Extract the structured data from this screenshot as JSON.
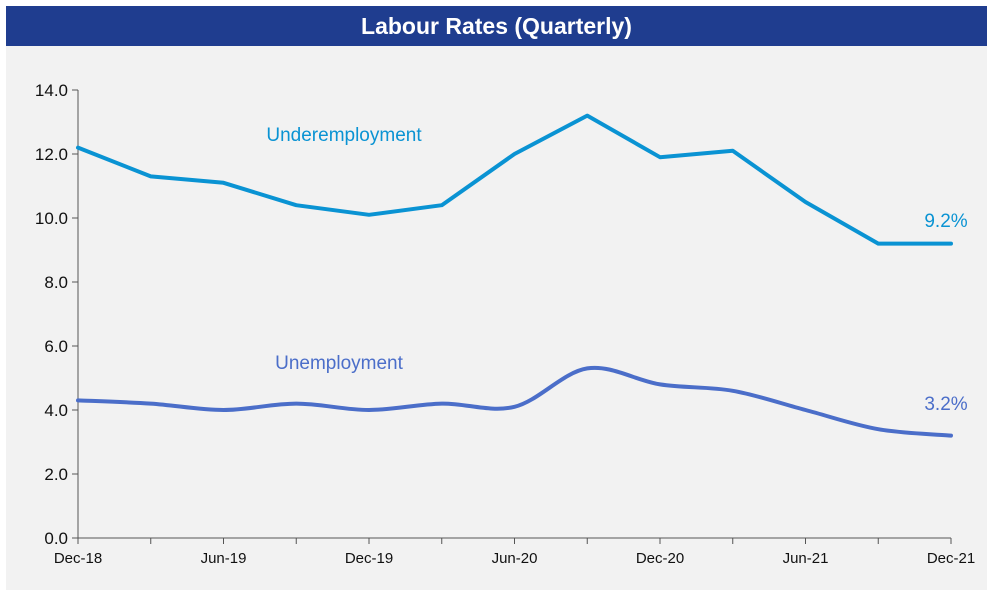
{
  "header": {
    "title": "Labour Rates (Quarterly)"
  },
  "colors": {
    "header_bg": "#1f3d8f",
    "panel_bg": "#f2f2f2",
    "underemployment": "#0a93d3",
    "unemployment": "#4b6ec9"
  },
  "chart_data": {
    "type": "line",
    "title": "Labour Rates (Quarterly)",
    "xlabel": "",
    "ylabel": "",
    "grid": false,
    "x": [
      "Dec-18",
      "Mar-19",
      "Jun-19",
      "Sep-19",
      "Dec-19",
      "Mar-20",
      "Jun-20",
      "Sep-20",
      "Dec-20",
      "Mar-21",
      "Jun-21",
      "Sep-21",
      "Dec-21"
    ],
    "x_tick_labels": [
      "Dec-18",
      "Jun-19",
      "Dec-19",
      "Jun-20",
      "Dec-20",
      "Jun-21",
      "Dec-21"
    ],
    "ylim": [
      0,
      14
    ],
    "y_ticks": [
      "0.0",
      "2.0",
      "4.0",
      "6.0",
      "8.0",
      "10.0",
      "12.0",
      "14.0"
    ],
    "series": [
      {
        "name": "Underemployment",
        "values": [
          12.2,
          11.3,
          11.1,
          10.4,
          10.1,
          10.4,
          12.0,
          13.2,
          11.9,
          12.1,
          10.5,
          9.2,
          9.2
        ],
        "end_label": "9.2%"
      },
      {
        "name": "Unemployment",
        "values": [
          4.3,
          4.2,
          4.0,
          4.2,
          4.0,
          4.2,
          4.1,
          5.3,
          4.8,
          4.6,
          4.0,
          3.4,
          3.2
        ],
        "end_label": "3.2%"
      }
    ]
  }
}
